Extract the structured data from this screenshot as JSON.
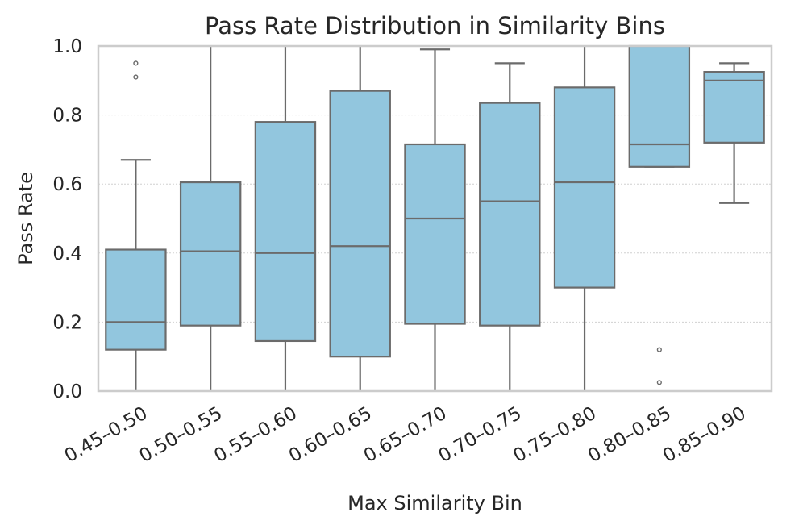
{
  "chart_data": {
    "type": "box",
    "title": "Pass Rate Distribution in Similarity Bins",
    "xlabel": "Max Similarity Bin",
    "ylabel": "Pass Rate",
    "ylim": [
      0.0,
      1.0
    ],
    "yticks": [
      0.0,
      0.2,
      0.4,
      0.6,
      0.8,
      1.0
    ],
    "ytick_labels": [
      "0.0",
      "0.2",
      "0.4",
      "0.6",
      "0.8",
      "1.0"
    ],
    "grid": true,
    "box_color": "#92c6de",
    "line_color": "#6b6b6b",
    "categories": [
      "0.45–0.50",
      "0.50–0.55",
      "0.55–0.60",
      "0.60–0.65",
      "0.65–0.70",
      "0.70–0.75",
      "0.75–0.80",
      "0.80–0.85",
      "0.85–0.90"
    ],
    "boxes": [
      {
        "whisker_low": 0.0,
        "q1": 0.12,
        "median": 0.2,
        "q3": 0.41,
        "whisker_high": 0.67,
        "outliers": [
          0.91,
          0.95
        ]
      },
      {
        "whisker_low": 0.0,
        "q1": 0.19,
        "median": 0.405,
        "q3": 0.605,
        "whisker_high": 1.0,
        "outliers": []
      },
      {
        "whisker_low": 0.0,
        "q1": 0.145,
        "median": 0.4,
        "q3": 0.78,
        "whisker_high": 1.0,
        "outliers": []
      },
      {
        "whisker_low": 0.0,
        "q1": 0.1,
        "median": 0.42,
        "q3": 0.87,
        "whisker_high": 1.0,
        "outliers": []
      },
      {
        "whisker_low": 0.0,
        "q1": 0.195,
        "median": 0.5,
        "q3": 0.715,
        "whisker_high": 0.99,
        "outliers": []
      },
      {
        "whisker_low": 0.0,
        "q1": 0.19,
        "median": 0.55,
        "q3": 0.835,
        "whisker_high": 0.95,
        "outliers": []
      },
      {
        "whisker_low": 0.0,
        "q1": 0.3,
        "median": 0.605,
        "q3": 0.88,
        "whisker_high": 1.0,
        "outliers": []
      },
      {
        "whisker_low": 0.65,
        "q1": 0.65,
        "median": 0.715,
        "q3": 1.0,
        "whisker_high": 1.0,
        "outliers": [
          0.025,
          0.12
        ]
      },
      {
        "whisker_low": 0.545,
        "q1": 0.72,
        "median": 0.9,
        "q3": 0.925,
        "whisker_high": 0.95,
        "outliers": []
      }
    ]
  }
}
